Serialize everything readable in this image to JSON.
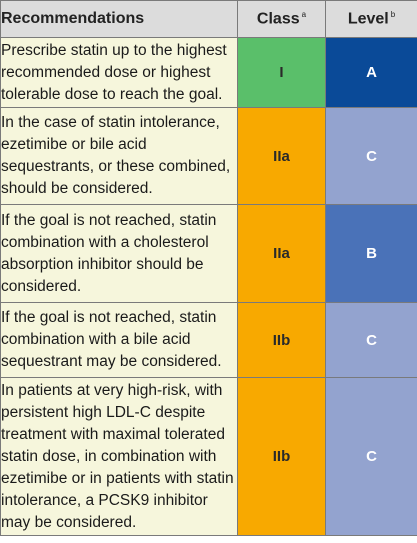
{
  "header": {
    "recommendations": "Recommendations",
    "class_label": "Class",
    "class_sup": "a",
    "level_label": "Level",
    "level_sup": "b"
  },
  "colors": {
    "class_I": "#5abf6a",
    "class_IIa": "#f8a900",
    "class_IIb": "#f8a900",
    "level_A": "#0a4a98",
    "level_B": "#4a72b8",
    "level_C": "#93a3cf"
  },
  "rows": [
    {
      "text": "Prescribe statin up to the highest recommended dose or highest tolerable dose to reach the goal.",
      "class": "I",
      "level": "A",
      "class_color": "#5abf6a",
      "level_color": "#0a4a98"
    },
    {
      "text": "In the case of statin intolerance, ezetimibe or bile acid sequestrants, or these combined, should be considered.",
      "class": "IIa",
      "level": "C",
      "class_color": "#f8a900",
      "level_color": "#93a3cf"
    },
    {
      "text": "If the goal is not reached, statin combination with a cholesterol absorption inhibitor should be considered.",
      "class": "IIa",
      "level": "B",
      "class_color": "#f8a900",
      "level_color": "#4a72b8"
    },
    {
      "text": "If the goal is not reached, statin combination with a bile acid sequestrant may be considered.",
      "class": "IIb",
      "level": "C",
      "class_color": "#f8a900",
      "level_color": "#93a3cf"
    },
    {
      "text": "In patients at very high-risk, with persistent high LDL-C despite treatment with maximal tolerated statin dose, in combination with ezetimibe or in patients with statin intolerance, a PCSK9 inhibitor may be considered.",
      "class": "IIb",
      "level": "C",
      "class_color": "#f8a900",
      "level_color": "#93a3cf"
    }
  ]
}
